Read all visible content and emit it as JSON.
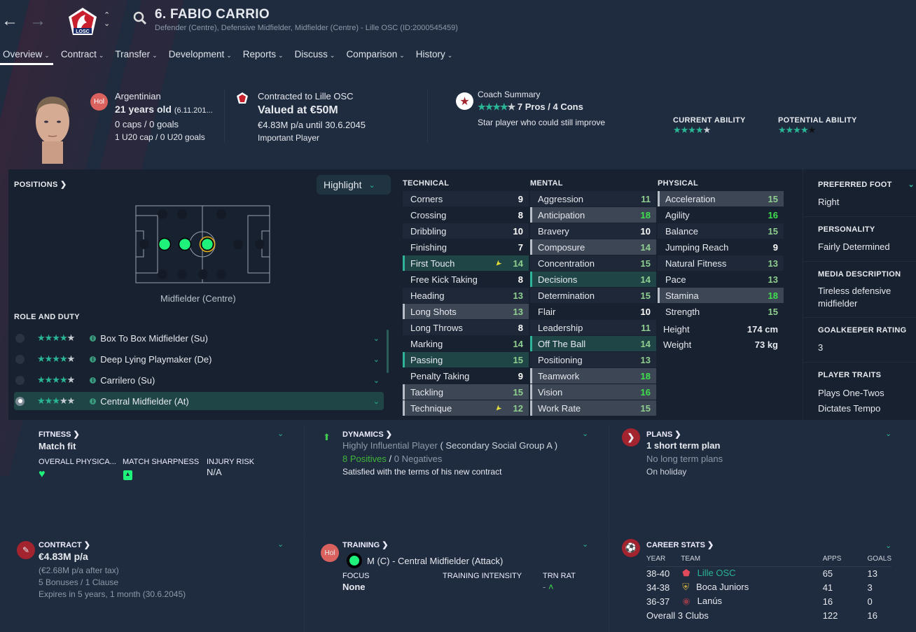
{
  "header": {
    "title": "6. FABIO CARRIO",
    "subtitle": "Defender (Centre), Defensive Midfielder, Midfielder (Centre) - Lille OSC (ID:2000545459)",
    "club_badge": "LOSC"
  },
  "nav": [
    "Overview",
    "Contract",
    "Transfer",
    "Development",
    "Reports",
    "Discuss",
    "Comparison",
    "History"
  ],
  "profile": {
    "status_badge": "Hol",
    "nationality": "Argentinian",
    "age": "21 years old",
    "dob": "(6.11.201...",
    "caps": "0 caps / 0 goals",
    "u20": "1 U20 cap / 0 U20 goals"
  },
  "contract_summary": {
    "line1": "Contracted to Lille OSC",
    "value": "Valued at €50M",
    "wage": "€4.83M p/a until 30.6.2045",
    "status": "Important Player"
  },
  "coach": {
    "title": "Coach Summary",
    "stars": 4,
    "pros_cons": "7 Pros / 4 Cons",
    "summary": "Star player who could still improve",
    "current_ability_label": "CURRENT ABILITY",
    "current_ability_stars": 4,
    "potential_ability_label": "POTENTIAL ABILITY",
    "potential_ability_stars": 4
  },
  "positions": {
    "title": "POSITIONS",
    "highlight": "Highlight",
    "selected_position": "Midfielder (Centre)",
    "role_title": "ROLE AND DUTY",
    "roles": [
      {
        "name": "Box To Box Midfielder (Su)",
        "stars": 4,
        "selected": false
      },
      {
        "name": "Deep Lying Playmaker (De)",
        "stars": 4,
        "selected": false
      },
      {
        "name": "Carrilero (Su)",
        "stars": 4,
        "selected": false
      },
      {
        "name": "Central Midfielder (At)",
        "stars": 3.5,
        "selected": true
      }
    ]
  },
  "attributes": {
    "technical_label": "TECHNICAL",
    "mental_label": "MENTAL",
    "physical_label": "PHYSICAL",
    "technical": [
      [
        "Corners",
        9,
        ""
      ],
      [
        "Crossing",
        8,
        ""
      ],
      [
        "Dribbling",
        10,
        ""
      ],
      [
        "Finishing",
        7,
        ""
      ],
      [
        "First Touch",
        14,
        "key",
        "up"
      ],
      [
        "Free Kick Taking",
        8,
        ""
      ],
      [
        "Heading",
        13,
        ""
      ],
      [
        "Long Shots",
        13,
        "pref"
      ],
      [
        "Long Throws",
        8,
        ""
      ],
      [
        "Marking",
        14,
        ""
      ],
      [
        "Passing",
        15,
        "key"
      ],
      [
        "Penalty Taking",
        9,
        ""
      ],
      [
        "Tackling",
        15,
        "pref"
      ],
      [
        "Technique",
        12,
        "pref",
        "up"
      ]
    ],
    "mental": [
      [
        "Aggression",
        11,
        ""
      ],
      [
        "Anticipation",
        18,
        "pref"
      ],
      [
        "Bravery",
        10,
        ""
      ],
      [
        "Composure",
        14,
        "pref"
      ],
      [
        "Concentration",
        15,
        ""
      ],
      [
        "Decisions",
        14,
        "key"
      ],
      [
        "Determination",
        15,
        ""
      ],
      [
        "Flair",
        10,
        ""
      ],
      [
        "Leadership",
        11,
        ""
      ],
      [
        "Off The Ball",
        14,
        "key"
      ],
      [
        "Positioning",
        13,
        ""
      ],
      [
        "Teamwork",
        18,
        "pref"
      ],
      [
        "Vision",
        16,
        "pref"
      ],
      [
        "Work Rate",
        15,
        "pref"
      ]
    ],
    "physical": [
      [
        "Acceleration",
        15,
        "pref"
      ],
      [
        "Agility",
        16,
        ""
      ],
      [
        "Balance",
        15,
        ""
      ],
      [
        "Jumping Reach",
        9,
        ""
      ],
      [
        "Natural Fitness",
        13,
        ""
      ],
      [
        "Pace",
        13,
        ""
      ],
      [
        "Stamina",
        18,
        "pref"
      ],
      [
        "Strength",
        15,
        ""
      ]
    ],
    "height_label": "Height",
    "height": "174 cm",
    "weight_label": "Weight",
    "weight": "73 kg"
  },
  "side": {
    "foot_label": "PREFERRED FOOT",
    "foot": "Right",
    "personality_label": "PERSONALITY",
    "personality": "Fairly Determined",
    "media_label": "MEDIA DESCRIPTION",
    "media": "Tireless defensive midfielder",
    "gk_label": "GOALKEEPER RATING",
    "gk": "3",
    "traits_label": "PLAYER TRAITS",
    "traits": [
      "Plays One-Twos",
      "Dictates Tempo"
    ]
  },
  "fitness": {
    "title": "FITNESS",
    "status": "Match fit",
    "overall_label": "OVERALL PHYSICA...",
    "sharpness_label": "MATCH SHARPNESS",
    "injury_label": "INJURY RISK",
    "injury": "N/A"
  },
  "dynamics": {
    "title": "DYNAMICS",
    "influence": "Highly Influential Player",
    "group": "( Secondary Social Group A )",
    "positives": "8 Positives",
    "sep": "/",
    "negatives": "0 Negatives",
    "note": "Satisfied with the terms of his new contract"
  },
  "plans": {
    "title": "PLANS",
    "short": "1 short term plan",
    "long": "No long term plans",
    "note": "On holiday"
  },
  "contract": {
    "title": "CONTRACT",
    "wage": "€4.83M p/a",
    "after_tax": "(€2.68M p/a after tax)",
    "bonuses": "5 Bonuses / 1 Clause",
    "expires": "Expires in 5 years, 1 month (30.6.2045)"
  },
  "training": {
    "title": "TRAINING",
    "badge": "Hol",
    "role": "M (C) - Central Midfielder (Attack)",
    "focus_label": "FOCUS",
    "focus": "None",
    "intensity_label": "TRAINING INTENSITY",
    "rating_label": "TRN RAT",
    "rating": "-"
  },
  "career": {
    "title": "CAREER STATS",
    "headers": [
      "YEAR",
      "TEAM",
      "APPS",
      "GOALS"
    ],
    "rows": [
      {
        "year": "38-40",
        "team": "Lille OSC",
        "apps": "65",
        "goals": "13"
      },
      {
        "year": "34-38",
        "team": "Boca Juniors",
        "apps": "41",
        "goals": "3"
      },
      {
        "year": "36-37",
        "team": "Lanús",
        "apps": "16",
        "goals": "0"
      }
    ],
    "overall_label": "Overall",
    "overall_clubs": "3 Clubs",
    "overall_apps": "122",
    "overall_goals": "16"
  },
  "colors": {
    "accent": "#2ab595",
    "club_red": "#a3242f",
    "key_row": "#1f4547",
    "pref_row": "#3d4655",
    "high_value": "#3fe04f",
    "mid_value": "#8fcf8f"
  }
}
